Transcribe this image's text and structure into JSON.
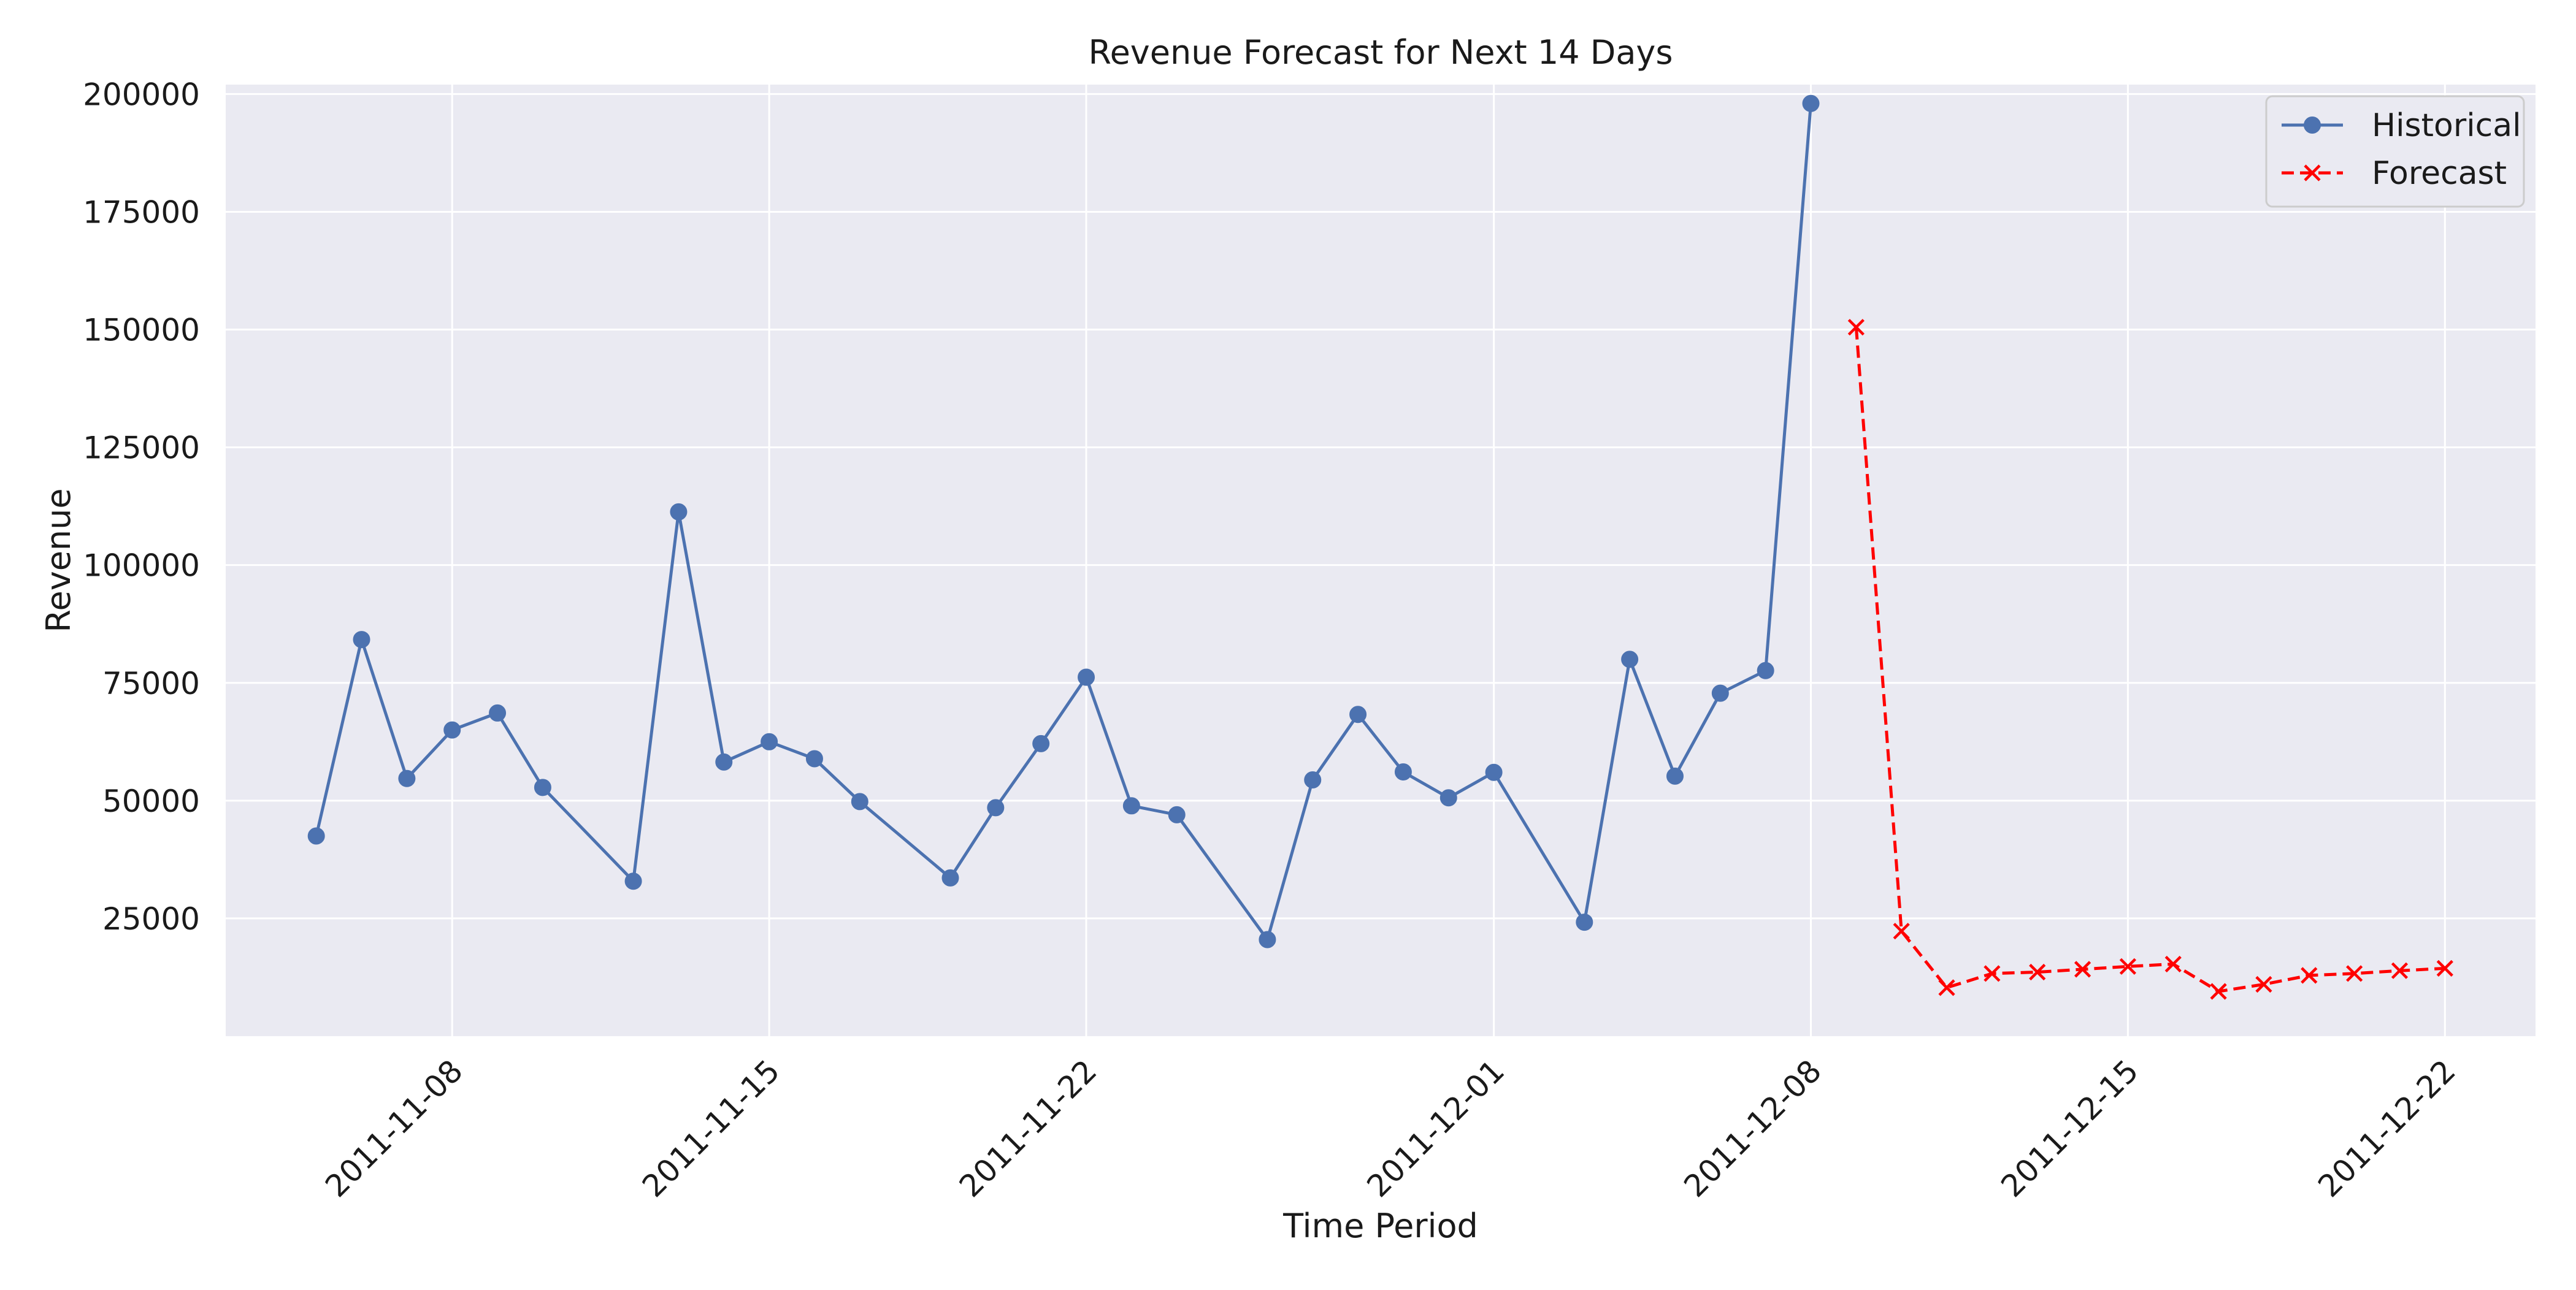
{
  "chart_data": {
    "type": "line",
    "title": "Revenue Forecast for Next 14 Days",
    "xlabel": "Time Period",
    "ylabel": "Revenue",
    "xlim": [
      "2011-11-03",
      "2011-12-24"
    ],
    "ylim": [
      0,
      202000
    ],
    "x_ticks": [
      "2011-11-08",
      "2011-11-15",
      "2011-11-22",
      "2011-12-01",
      "2011-12-08",
      "2011-12-15",
      "2011-12-22"
    ],
    "y_ticks": [
      25000,
      50000,
      75000,
      100000,
      125000,
      150000,
      175000,
      200000
    ],
    "grid": true,
    "legend_position": "top-right",
    "series": [
      {
        "name": "Historical",
        "color": "#4c72b0",
        "line_style": "solid",
        "marker": "circle",
        "points": [
          {
            "date": "2011-11-05",
            "value": 42500
          },
          {
            "date": "2011-11-06",
            "value": 84200
          },
          {
            "date": "2011-11-07",
            "value": 54700
          },
          {
            "date": "2011-11-08",
            "value": 65000
          },
          {
            "date": "2011-11-09",
            "value": 68600
          },
          {
            "date": "2011-11-10",
            "value": 52800
          },
          {
            "date": "2011-11-12",
            "value": 32900
          },
          {
            "date": "2011-11-13",
            "value": 111300
          },
          {
            "date": "2011-11-14",
            "value": 58200
          },
          {
            "date": "2011-11-15",
            "value": 62500
          },
          {
            "date": "2011-11-16",
            "value": 58900
          },
          {
            "date": "2011-11-17",
            "value": 49800
          },
          {
            "date": "2011-11-19",
            "value": 33600
          },
          {
            "date": "2011-11-20",
            "value": 48500
          },
          {
            "date": "2011-11-21",
            "value": 62100
          },
          {
            "date": "2011-11-22",
            "value": 76200
          },
          {
            "date": "2011-11-23",
            "value": 48900
          },
          {
            "date": "2011-11-24",
            "value": 47000
          },
          {
            "date": "2011-11-26",
            "value": 20500
          },
          {
            "date": "2011-11-27",
            "value": 54400
          },
          {
            "date": "2011-11-28",
            "value": 68300
          },
          {
            "date": "2011-11-29",
            "value": 56100
          },
          {
            "date": "2011-11-30",
            "value": 50600
          },
          {
            "date": "2011-12-01",
            "value": 56000
          },
          {
            "date": "2011-12-03",
            "value": 24200
          },
          {
            "date": "2011-12-04",
            "value": 80000
          },
          {
            "date": "2011-12-05",
            "value": 55200
          },
          {
            "date": "2011-12-06",
            "value": 72800
          },
          {
            "date": "2011-12-07",
            "value": 77600
          },
          {
            "date": "2011-12-08",
            "value": 198000
          }
        ]
      },
      {
        "name": "Forecast",
        "color": "#ff0000",
        "line_style": "dashed",
        "marker": "x",
        "points": [
          {
            "date": "2011-12-09",
            "value": 150500
          },
          {
            "date": "2011-12-10",
            "value": 22300
          },
          {
            "date": "2011-12-11",
            "value": 10300
          },
          {
            "date": "2011-12-12",
            "value": 13300
          },
          {
            "date": "2011-12-13",
            "value": 13600
          },
          {
            "date": "2011-12-14",
            "value": 14200
          },
          {
            "date": "2011-12-15",
            "value": 14800
          },
          {
            "date": "2011-12-16",
            "value": 15300
          },
          {
            "date": "2011-12-17",
            "value": 9500
          },
          {
            "date": "2011-12-18",
            "value": 11000
          },
          {
            "date": "2011-12-19",
            "value": 12900
          },
          {
            "date": "2011-12-20",
            "value": 13300
          },
          {
            "date": "2011-12-21",
            "value": 13900
          },
          {
            "date": "2011-12-22",
            "value": 14400
          }
        ]
      }
    ]
  }
}
